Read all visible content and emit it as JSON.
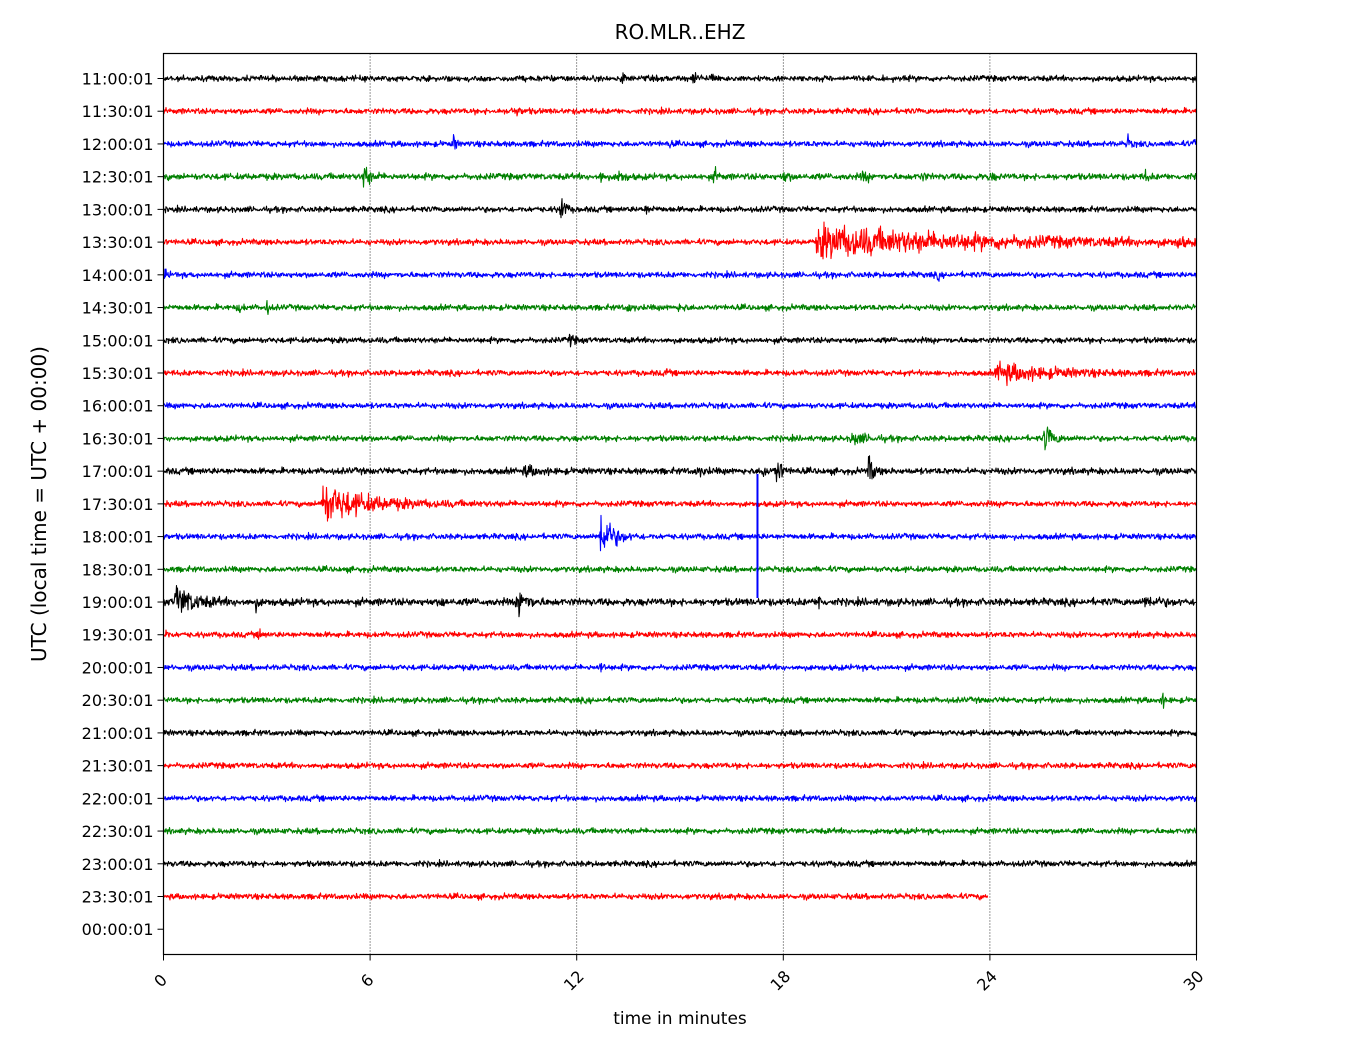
{
  "chart_data": {
    "type": "line",
    "title": "RO.MLR..EHZ",
    "xlabel": "time in minutes",
    "ylabel": "UTC (local time = UTC + 00:00)",
    "xlim": [
      0,
      30
    ],
    "x_ticks": [
      0,
      6,
      12,
      18,
      24,
      30
    ],
    "grid": "vertical dotted lines at x ticks",
    "row_labels": [
      "11:00:01",
      "11:30:01",
      "12:00:01",
      "12:30:01",
      "13:00:01",
      "13:30:01",
      "14:00:01",
      "14:30:01",
      "15:00:01",
      "15:30:01",
      "16:00:01",
      "16:30:01",
      "17:00:01",
      "17:30:01",
      "18:00:01",
      "18:30:01",
      "19:00:01",
      "19:30:01",
      "20:00:01",
      "20:30:01",
      "21:00:01",
      "21:30:01",
      "22:00:01",
      "22:30:01",
      "23:00:01",
      "23:30:01",
      "00:00:01"
    ],
    "color_cycle": [
      "#000000",
      "#ff0000",
      "#0000ff",
      "#008000"
    ],
    "traces": [
      {
        "label": "11:00:01",
        "end": 30,
        "noise": 2.5,
        "events": [
          [
            13.35,
            10,
            0.3,
            10
          ],
          [
            15.4,
            6,
            0.8,
            8
          ],
          [
            15.9,
            5,
            0.5,
            6
          ]
        ]
      },
      {
        "label": "11:30:01",
        "end": 30,
        "noise": 2.5,
        "events": [
          [
            10.1,
            4,
            1.2,
            6
          ]
        ]
      },
      {
        "label": "12:00:01",
        "end": 30,
        "noise": 2.5,
        "events": [
          [
            8.45,
            12,
            0.25,
            8
          ],
          [
            14.7,
            3,
            0.2,
            6
          ],
          [
            28.0,
            6,
            0.6,
            8
          ],
          [
            29.95,
            5,
            0.1,
            5
          ]
        ]
      },
      {
        "label": "12:30:01",
        "end": 30,
        "noise": 2.8,
        "events": [
          [
            5.8,
            12,
            1.0,
            6
          ],
          [
            12.7,
            6,
            0.4,
            6
          ],
          [
            13.2,
            6,
            0.8,
            6
          ],
          [
            16.0,
            6,
            0.6,
            8
          ],
          [
            18.0,
            5,
            0.8,
            6
          ],
          [
            20.3,
            4,
            1.0,
            6
          ],
          [
            22.0,
            4,
            0.5,
            6
          ],
          [
            24.0,
            4,
            0.5,
            6
          ],
          [
            28.5,
            6,
            0.5,
            8
          ]
        ]
      },
      {
        "label": "13:00:01",
        "end": 30,
        "noise": 2.5,
        "events": [
          [
            11.55,
            16,
            0.7,
            8
          ],
          [
            14.0,
            3,
            1.0,
            6
          ]
        ]
      },
      {
        "label": "13:30:01",
        "end": 30,
        "noise": 2.5,
        "events": [
          [
            19.0,
            14,
            7.0,
            1.6
          ],
          [
            29.5,
            8,
            0.6,
            8
          ]
        ]
      },
      {
        "label": "14:00:01",
        "end": 30,
        "noise": 2.5,
        "events": [
          [
            0.05,
            6,
            0.4,
            8
          ],
          [
            22.5,
            4,
            0.2,
            6
          ]
        ]
      },
      {
        "label": "14:30:01",
        "end": 30,
        "noise": 2.5,
        "events": [
          [
            2.2,
            4,
            0.5,
            6
          ],
          [
            3.0,
            7,
            0.4,
            8
          ],
          [
            13.5,
            4,
            0.6,
            6
          ],
          [
            15.0,
            4,
            0.6,
            6
          ]
        ]
      },
      {
        "label": "15:00:01",
        "end": 30,
        "noise": 2.5,
        "events": [
          [
            11.8,
            4,
            0.8,
            6
          ]
        ]
      },
      {
        "label": "15:30:01",
        "end": 30,
        "noise": 2.5,
        "events": [
          [
            14.6,
            4,
            0.2,
            6
          ],
          [
            24.2,
            8,
            3.0,
            2
          ]
        ]
      },
      {
        "label": "16:00:01",
        "end": 30,
        "noise": 2.5,
        "events": []
      },
      {
        "label": "16:30:01",
        "end": 30,
        "noise": 2.5,
        "events": [
          [
            5.8,
            3,
            0.2,
            6
          ],
          [
            20.0,
            5,
            1.5,
            4
          ],
          [
            25.6,
            12,
            1.0,
            5
          ]
        ]
      },
      {
        "label": "17:00:01",
        "end": 30,
        "noise": 2.8,
        "events": [
          [
            10.5,
            4,
            1.5,
            4
          ],
          [
            15.5,
            4,
            1.0,
            6
          ],
          [
            17.4,
            6,
            0.6,
            6
          ],
          [
            17.8,
            15,
            0.7,
            6
          ],
          [
            20.5,
            15,
            0.6,
            6
          ]
        ]
      },
      {
        "label": "17:30:01",
        "end": 30,
        "noise": 2.5,
        "events": [
          [
            4.6,
            18,
            3.0,
            2.5
          ],
          [
            24.5,
            4,
            0.3,
            6
          ]
        ]
      },
      {
        "label": "18:00:01",
        "end": 30,
        "noise": 2.5,
        "events": [
          [
            12.7,
            24,
            1.2,
            4
          ]
        ]
      },
      {
        "label": "18:30:01",
        "end": 30,
        "noise": 2.5,
        "events": []
      },
      {
        "label": "19:00:01",
        "end": 30,
        "noise": 3.2,
        "events": [
          [
            0.35,
            14,
            1.5,
            3
          ],
          [
            2.7,
            6,
            0.3,
            6
          ],
          [
            8.1,
            5,
            0.3,
            6
          ],
          [
            10.3,
            16,
            1.0,
            5
          ],
          [
            19.05,
            9,
            0.3,
            6
          ],
          [
            28.5,
            4,
            1.5,
            4
          ]
        ]
      },
      {
        "label": "19:30:01",
        "end": 30,
        "noise": 2.5,
        "events": [
          [
            0.05,
            6,
            0.4,
            8
          ],
          [
            2.8,
            6,
            0.3,
            6
          ]
        ]
      },
      {
        "label": "20:00:01",
        "end": 30,
        "noise": 2.5,
        "events": [
          [
            12.7,
            6,
            0.3,
            6
          ]
        ]
      },
      {
        "label": "20:30:01",
        "end": 30,
        "noise": 2.5,
        "events": [
          [
            29.0,
            7,
            0.4,
            6
          ]
        ]
      },
      {
        "label": "21:00:01",
        "end": 30,
        "noise": 2.5,
        "events": []
      },
      {
        "label": "21:30:01",
        "end": 30,
        "noise": 2.5,
        "events": []
      },
      {
        "label": "22:00:01",
        "end": 30,
        "noise": 2.5,
        "events": []
      },
      {
        "label": "22:30:01",
        "end": 30,
        "noise": 2.5,
        "events": []
      },
      {
        "label": "23:00:01",
        "end": 30,
        "noise": 2.5,
        "events": []
      },
      {
        "label": "23:30:01",
        "end": 23.95,
        "noise": 2.5,
        "events": []
      }
    ],
    "spikes": [
      {
        "x": 17.25,
        "from_row": "17:30:01",
        "to_row": "19:00:01",
        "color": "#0000ff"
      }
    ]
  }
}
